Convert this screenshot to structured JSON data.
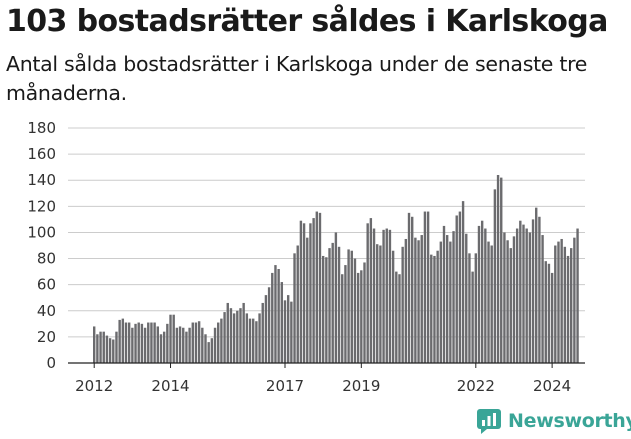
{
  "title": "103 bostadsrätter såldes i Karlskoga",
  "subtitle": "Antal sålda bostadsrätter i Karlskoga under de senaste tre månaderna.",
  "brand": {
    "name": "Newsworthy"
  },
  "colors": {
    "bar": "#6b6b6e",
    "highlight": "#2ba59a",
    "grid": "#cccccc",
    "brand": "#3aa597"
  },
  "chart_data": {
    "type": "bar",
    "title": "103 bostadsrätter såldes i Karlskoga",
    "subtitle": "Antal sålda bostadsrätter i Karlskoga under de senaste tre månaderna.",
    "xlabel": "",
    "ylabel": "",
    "ylim": [
      0,
      180
    ],
    "yticks": [
      "0",
      "20",
      "40",
      "60",
      "80",
      "100",
      "120",
      "140",
      "160",
      "180"
    ],
    "xticks": [
      {
        "label": "2012",
        "index": 0
      },
      {
        "label": "2014",
        "index": 24
      },
      {
        "label": "2017",
        "index": 60
      },
      {
        "label": "2019",
        "index": 84
      },
      {
        "label": "2022",
        "index": 120
      },
      {
        "label": "2024",
        "index": 144
      }
    ],
    "grid": true,
    "legend": "none",
    "highlight": {
      "index": 153,
      "label": "103"
    },
    "values": [
      28,
      22,
      24,
      24,
      21,
      19,
      18,
      24,
      33,
      34,
      31,
      31,
      27,
      30,
      31,
      30,
      27,
      31,
      31,
      31,
      28,
      22,
      24,
      30,
      37,
      37,
      27,
      28,
      27,
      24,
      27,
      31,
      31,
      32,
      27,
      22,
      16,
      19,
      27,
      31,
      34,
      39,
      46,
      42,
      38,
      40,
      42,
      46,
      38,
      34,
      34,
      32,
      38,
      46,
      52,
      58,
      69,
      75,
      72,
      62,
      48,
      52,
      47,
      84,
      90,
      109,
      107,
      96,
      107,
      111,
      116,
      115,
      82,
      81,
      88,
      92,
      100,
      89,
      68,
      75,
      87,
      86,
      80,
      69,
      71,
      77,
      107,
      111,
      103,
      91,
      90,
      102,
      103,
      102,
      86,
      70,
      68,
      89,
      95,
      115,
      112,
      96,
      94,
      98,
      116,
      116,
      83,
      82,
      86,
      93,
      105,
      98,
      93,
      101,
      113,
      116,
      124,
      99,
      84,
      70,
      84,
      105,
      109,
      103,
      93,
      90,
      133,
      144,
      142,
      100,
      94,
      88,
      97,
      103,
      109,
      106,
      103,
      100,
      110,
      119,
      112,
      98,
      78,
      76,
      69,
      90,
      93,
      95,
      89,
      82,
      88,
      96,
      103
    ]
  }
}
